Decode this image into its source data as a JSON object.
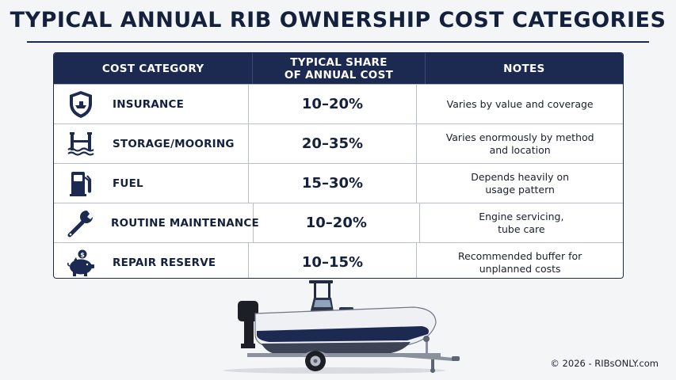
{
  "title": "TYPICAL ANNUAL RIB OWNERSHIP COST CATEGORIES",
  "table": {
    "headers": {
      "category": "COST CATEGORY",
      "share_line1": "TYPICAL SHARE",
      "share_line2": "OF ANNUAL COST",
      "notes": "NOTES"
    },
    "rows": [
      {
        "icon": "shield-boat-icon",
        "category": "INSURANCE",
        "share": "10–20%",
        "note_line1": "Varies by value and coverage",
        "note_line2": ""
      },
      {
        "icon": "mooring-icon",
        "category": "STORAGE/MOORING",
        "share": "20–35%",
        "note_line1": "Varies enormously by method",
        "note_line2": "and location"
      },
      {
        "icon": "fuel-pump-icon",
        "category": "FUEL",
        "share": "15–30%",
        "note_line1": "Depends heavily on",
        "note_line2": "usage pattern"
      },
      {
        "icon": "wrench-icon",
        "category": "ROUTINE MAINTENANCE",
        "share": "10–20%",
        "note_line1": "Engine servicing,",
        "note_line2": "tube care"
      },
      {
        "icon": "piggy-bank-icon",
        "category": "REPAIR RESERVE",
        "share": "10–15%",
        "note_line1": "Recommended buffer for",
        "note_line2": "unplanned costs"
      }
    ]
  },
  "colors": {
    "navy": "#1c2a52",
    "text": "#14213d",
    "border": "#b9bec8"
  },
  "copyright": "© 2026 - RIBsONLY.com"
}
